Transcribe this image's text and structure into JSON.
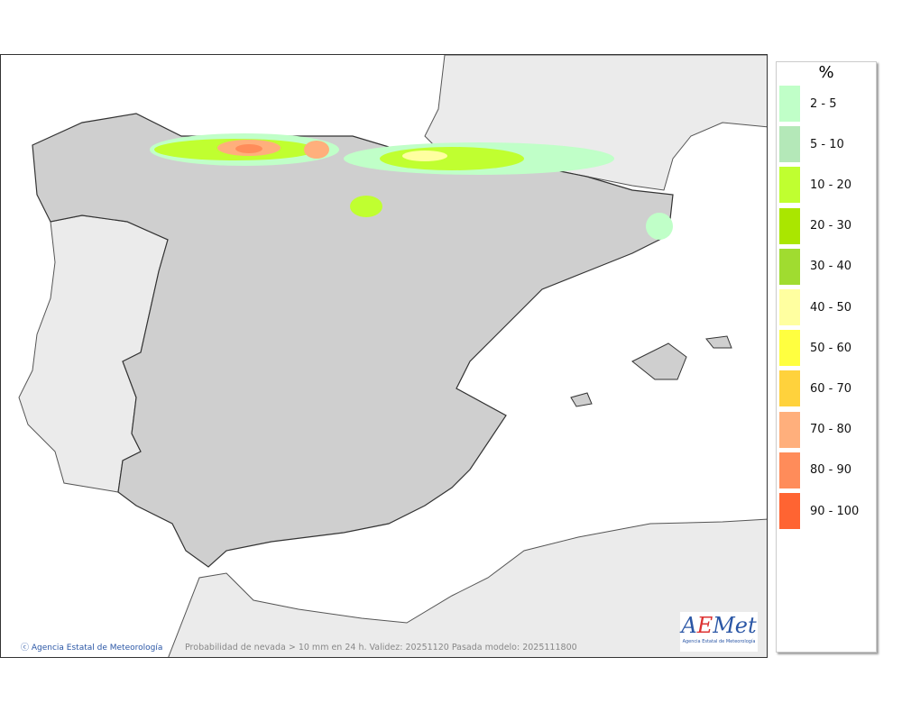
{
  "legend": {
    "title": "%",
    "items": [
      {
        "label": "2 - 5",
        "color": "#c0ffc8"
      },
      {
        "label": "5 - 10",
        "color": "#b4e8b8"
      },
      {
        "label": "10 - 20",
        "color": "#c0ff30"
      },
      {
        "label": "20 - 30",
        "color": "#aae600"
      },
      {
        "label": "30 - 40",
        "color": "#a0dc30"
      },
      {
        "label": "40 - 50",
        "color": "#ffffa0"
      },
      {
        "label": "50 - 60",
        "color": "#ffff40"
      },
      {
        "label": "60 - 70",
        "color": "#ffd23c"
      },
      {
        "label": "70 - 80",
        "color": "#ffaf7c"
      },
      {
        "label": "80 - 90",
        "color": "#ff8c5a"
      },
      {
        "label": "90 - 100",
        "color": "#ff6432"
      }
    ]
  },
  "footer": {
    "credit": "Agencia Estatal de Meteorología",
    "caption": "Probabilidad de nevada > 10 mm en 24 h. Validez: 20251120 Pasada modelo: 2025111800",
    "logo_text": "AEMet",
    "logo_sub": "Agencia Estatal de Meteorología"
  }
}
